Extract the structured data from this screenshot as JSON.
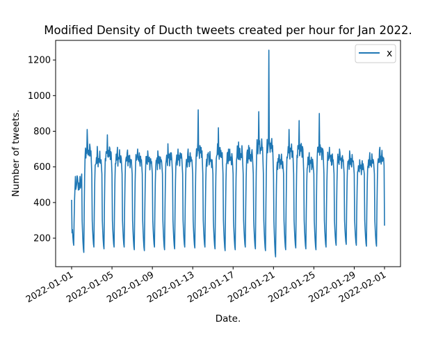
{
  "chart_data": {
    "type": "line",
    "title": "Modified Density of Ducth tweets created per hour for Jan 2022.",
    "xlabel": "Date.",
    "ylabel": "Number of tweets.",
    "x_range": [
      "2022-01-01",
      "2022-02-01"
    ],
    "ylim": [
      40,
      1310
    ],
    "grid": false,
    "legend_position": "top-right",
    "x_ticks": [
      "2022-01-01",
      "2022-01-05",
      "2022-01-09",
      "2022-01-13",
      "2022-01-17",
      "2022-01-21",
      "2022-01-25",
      "2022-01-29",
      "2022-02-01"
    ],
    "y_ticks": [
      200,
      400,
      600,
      800,
      1000,
      1200
    ],
    "series": [
      {
        "name": "x",
        "color": "#1f77b4",
        "daily_min": [
          160,
          120,
          150,
          140,
          150,
          150,
          135,
          130,
          150,
          135,
          140,
          150,
          145,
          150,
          140,
          130,
          135,
          150,
          140,
          130,
          95,
          135,
          145,
          140,
          135,
          150,
          160,
          165,
          160,
          155,
          155
        ],
        "daily_peak": [
          550,
          810,
          715,
          780,
          710,
          695,
          700,
          690,
          690,
          730,
          700,
          700,
          920,
          680,
          820,
          700,
          740,
          720,
          910,
          1255,
          670,
          810,
          860,
          680,
          900,
          710,
          700,
          690,
          640,
          680,
          710
        ],
        "daily_mean": [
          500,
          690,
          640,
          680,
          650,
          640,
          640,
          630,
          630,
          650,
          650,
          640,
          690,
          640,
          680,
          650,
          670,
          660,
          710,
          720,
          630,
          690,
          700,
          620,
          690,
          640,
          640,
          630,
          600,
          630,
          650
        ],
        "start_value": 415,
        "end_value": 270
      }
    ]
  }
}
